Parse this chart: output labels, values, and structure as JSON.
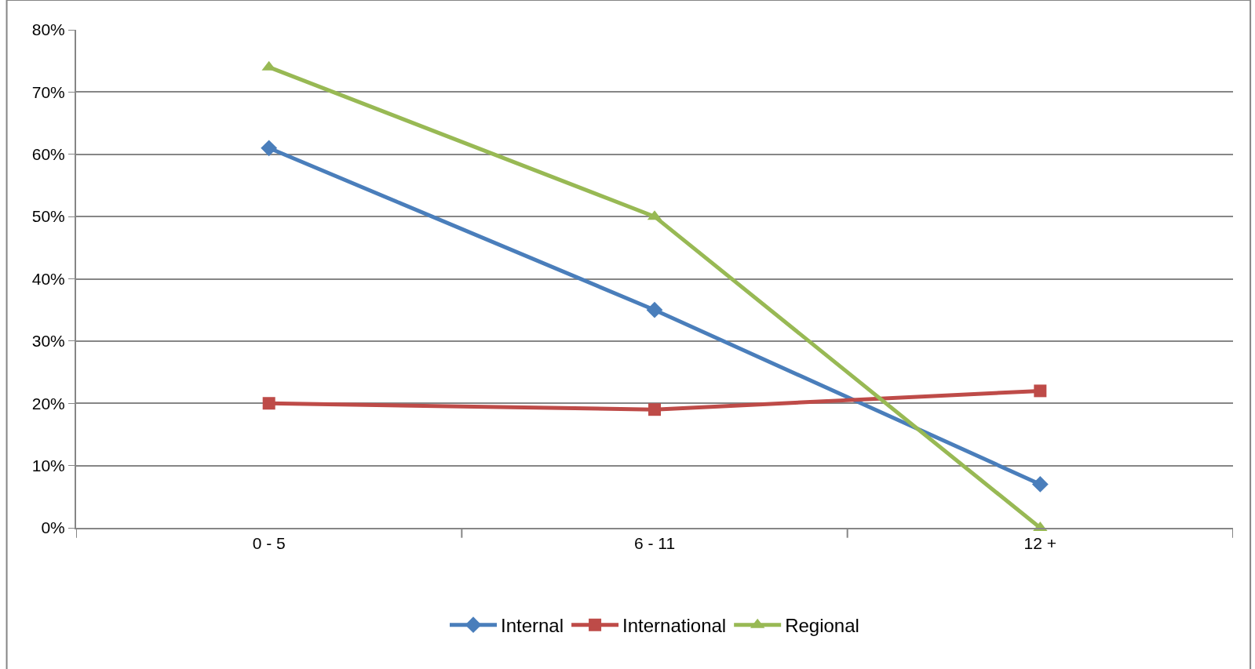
{
  "chart_data": {
    "type": "line",
    "categories": [
      "0 - 5",
      "6 - 11",
      "12 +"
    ],
    "series": [
      {
        "name": "Internal",
        "color": "#4a7ebb",
        "marker": "diamond",
        "values": [
          61,
          35,
          7
        ]
      },
      {
        "name": "International",
        "color": "#be4b48",
        "marker": "square",
        "values": [
          20,
          19,
          22
        ]
      },
      {
        "name": "Regional",
        "color": "#98b954",
        "marker": "triangle",
        "values": [
          74,
          50,
          0
        ]
      }
    ],
    "ylim": [
      0,
      80
    ],
    "yticks": [
      {
        "value": 0,
        "label": "0%"
      },
      {
        "value": 10,
        "label": "10%"
      },
      {
        "value": 20,
        "label": "20%"
      },
      {
        "value": 30,
        "label": "30%"
      },
      {
        "value": 40,
        "label": "40%"
      },
      {
        "value": 50,
        "label": "50%"
      },
      {
        "value": 60,
        "label": "60%"
      },
      {
        "value": 70,
        "label": "70%"
      },
      {
        "value": 80,
        "label": "80%"
      }
    ],
    "grid": "y",
    "legend": "bottom",
    "line_style": "solid"
  }
}
